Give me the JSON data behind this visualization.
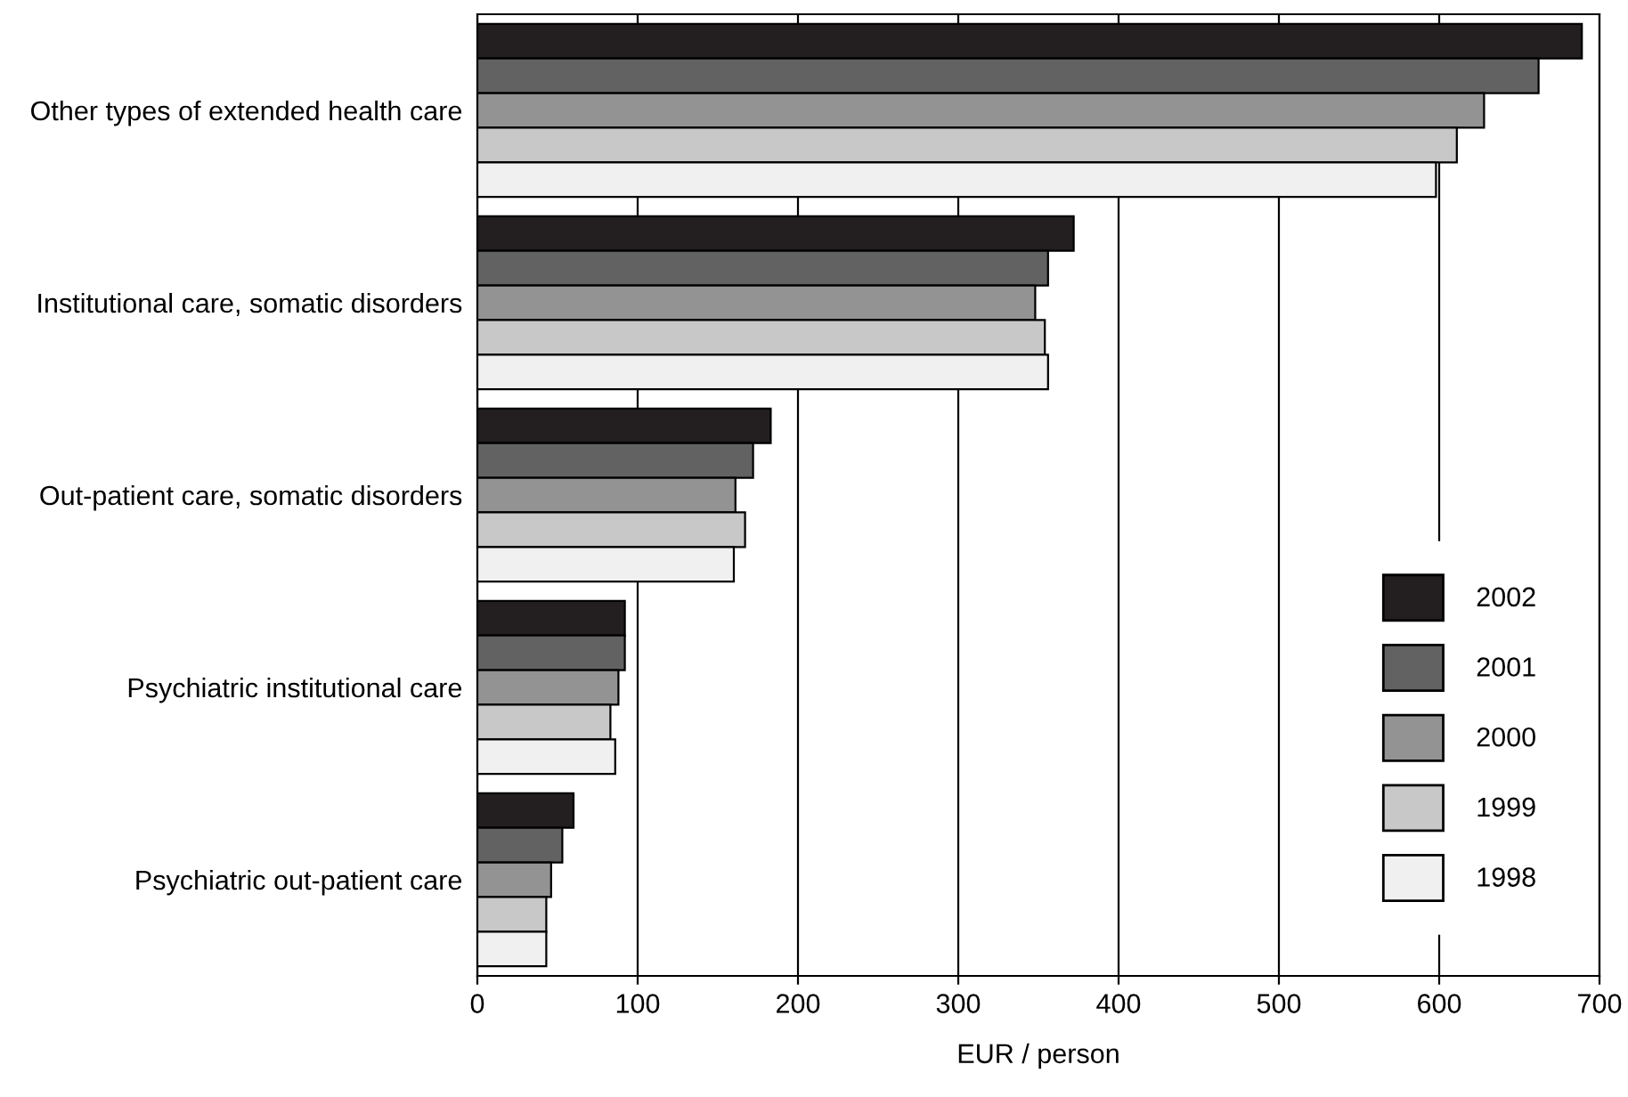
{
  "chart_data": {
    "type": "bar",
    "orientation": "horizontal",
    "xlabel": "EUR / person",
    "categories": [
      "Other types of extended health care",
      "Institutional care, somatic disorders",
      "Out-patient care, somatic disorders",
      "Psychiatric institutional care",
      "Psychiatric out-patient care"
    ],
    "series": [
      {
        "name": "2002",
        "color": "#231f20",
        "values": [
          689,
          372,
          183,
          92,
          60
        ]
      },
      {
        "name": "2001",
        "color": "#626262",
        "values": [
          662,
          356,
          172,
          92,
          53
        ]
      },
      {
        "name": "2000",
        "color": "#939393",
        "values": [
          628,
          348,
          161,
          88,
          46
        ]
      },
      {
        "name": "1999",
        "color": "#c8c8c8",
        "values": [
          611,
          354,
          167,
          83,
          43
        ]
      },
      {
        "name": "1998",
        "color": "#f0f0f0",
        "values": [
          598,
          356,
          160,
          86,
          43
        ]
      }
    ],
    "xlim": [
      0,
      700
    ],
    "xticks": [
      0,
      100,
      200,
      300,
      400,
      500,
      600,
      700
    ],
    "grid": "x",
    "legend": "bottom right"
  }
}
